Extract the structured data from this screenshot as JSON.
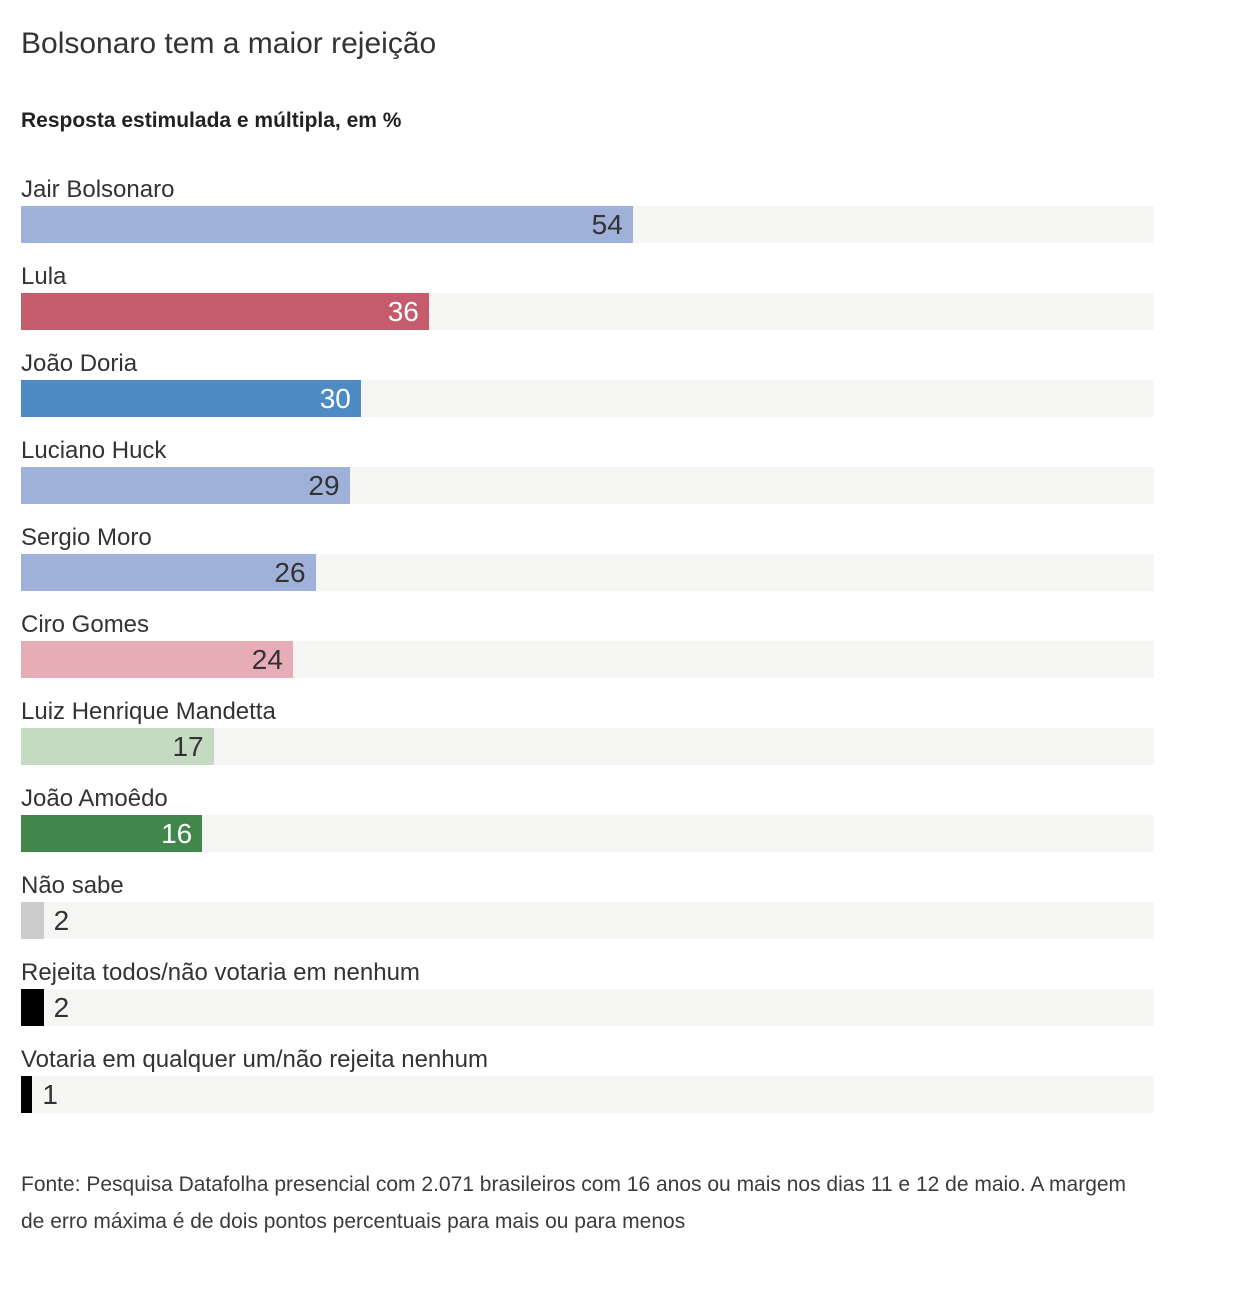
{
  "header": {
    "title": "Bolsonaro tem a maior rejeição",
    "subtitle": "Resposta estimulada e múltipla, em %"
  },
  "chart_data": {
    "type": "bar",
    "orientation": "horizontal",
    "title": "Bolsonaro tem a maior rejeição",
    "subtitle": "Resposta estimulada e múltipla, em %",
    "unit": "%",
    "xlabel": "",
    "ylabel": "",
    "xlim": [
      0,
      100
    ],
    "grid": false,
    "legend": false,
    "track_color": "#f5f5f4",
    "value_text_dark": "#333333",
    "value_text_light": "#ffffff",
    "bars": [
      {
        "label": "Jair Bolsonaro",
        "value": 54,
        "color": "#a0b1d9",
        "value_color": "#333333",
        "value_position": "inside"
      },
      {
        "label": "Lula",
        "value": 36,
        "color": "#c45c6d",
        "value_color": "#ffffff",
        "value_position": "inside"
      },
      {
        "label": "João Doria",
        "value": 30,
        "color": "#4e8ac4",
        "value_color": "#ffffff",
        "value_position": "inside"
      },
      {
        "label": "Luciano Huck",
        "value": 29,
        "color": "#a0b1d9",
        "value_color": "#333333",
        "value_position": "inside"
      },
      {
        "label": "Sergio Moro",
        "value": 26,
        "color": "#a0b1d9",
        "value_color": "#333333",
        "value_position": "inside"
      },
      {
        "label": "Ciro Gomes",
        "value": 24,
        "color": "#e6adb7",
        "value_color": "#333333",
        "value_position": "inside"
      },
      {
        "label": "Luiz Henrique Mandetta",
        "value": 17,
        "color": "#c4dbc2",
        "value_color": "#333333",
        "value_position": "inside"
      },
      {
        "label": "João Amoêdo",
        "value": 16,
        "color": "#41864a",
        "value_color": "#ffffff",
        "value_position": "inside"
      },
      {
        "label": "Não sabe",
        "value": 2,
        "color": "#cccccc",
        "value_color": "#333333",
        "value_position": "outside"
      },
      {
        "label": "Rejeita todos/não votaria em nenhum",
        "value": 2,
        "color": "#000000",
        "value_color": "#333333",
        "value_position": "outside"
      },
      {
        "label": "Votaria em qualquer um/não rejeita nenhum",
        "value": 1,
        "color": "#000000",
        "value_color": "#333333",
        "value_position": "outside"
      }
    ]
  },
  "footer": {
    "source": "Fonte: Pesquisa Datafolha presencial com 2.071 brasileiros com 16 anos ou mais nos dias 11 e 12 de maio. A margem de erro máxima é de dois pontos percentuais para mais ou para menos"
  }
}
